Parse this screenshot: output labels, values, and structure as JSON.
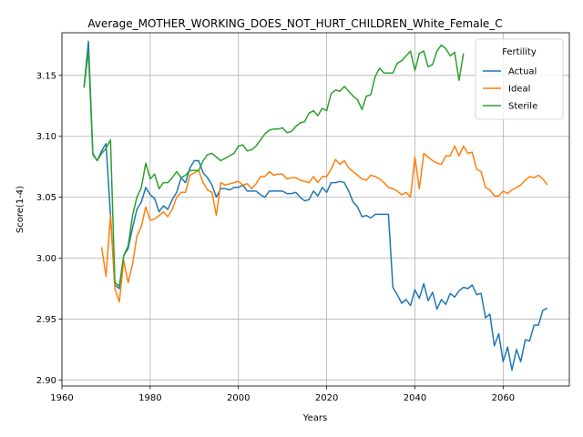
{
  "chart_data": {
    "type": "line",
    "title": "Average_MOTHER_WORKING_DOES_NOT_HURT_CHILDREN_White_Female_C",
    "xlabel": "Years",
    "ylabel": "Score(1-4)",
    "xlim": [
      1960,
      2075
    ],
    "ylim": [
      2.895,
      3.185
    ],
    "xticks": [
      1960,
      1980,
      2000,
      2020,
      2040,
      2060
    ],
    "yticks": [
      2.9,
      2.95,
      3.0,
      3.05,
      3.1,
      3.15
    ],
    "xtick_labels": [
      "1960",
      "1980",
      "2000",
      "2020",
      "2040",
      "2060"
    ],
    "ytick_labels": [
      "2.90",
      "2.95",
      "3.00",
      "3.05",
      "3.10",
      "3.15"
    ],
    "grid": true,
    "legend": {
      "title": "Fertility",
      "placement": "top-right"
    },
    "series": [
      {
        "name": "Actual",
        "color": "#1f77b4",
        "x": [
          1965,
          1966,
          1967,
          1968,
          1969,
          1970,
          1971,
          1972,
          1973,
          1974,
          1975,
          1976,
          1977,
          1978,
          1979,
          1980,
          1981,
          1982,
          1983,
          1984,
          1985,
          1986,
          1987,
          1988,
          1989,
          1990,
          1991,
          1992,
          1993,
          1994,
          1995,
          1996,
          1997,
          1998,
          1999,
          2000,
          2001,
          2002,
          2003,
          2004,
          2005,
          2006,
          2007,
          2008,
          2009,
          2010,
          2011,
          2012,
          2013,
          2014,
          2015,
          2016,
          2017,
          2018,
          2019,
          2020,
          2021,
          2022,
          2023,
          2024,
          2025,
          2026,
          2027,
          2028,
          2029,
          2030,
          2031,
          2032,
          2033,
          2034,
          2035,
          2036,
          2037,
          2038,
          2039,
          2040,
          2041,
          2042,
          2043,
          2044,
          2045,
          2046,
          2047,
          2048,
          2049,
          2050,
          2051,
          2052,
          2053,
          2054,
          2055,
          2056,
          2057,
          2058,
          2059,
          2060,
          2061,
          2062,
          2063,
          2064,
          2065,
          2066,
          2067,
          2068,
          2069,
          2070
        ],
        "values": [
          3.14,
          3.178,
          3.086,
          3.08,
          3.088,
          3.094,
          3.035,
          2.978,
          2.975,
          3.002,
          3.008,
          3.025,
          3.04,
          3.046,
          3.058,
          3.052,
          3.049,
          3.038,
          3.043,
          3.04,
          3.048,
          3.054,
          3.066,
          3.062,
          3.074,
          3.08,
          3.08,
          3.07,
          3.066,
          3.06,
          3.05,
          3.057,
          3.057,
          3.056,
          3.058,
          3.058,
          3.06,
          3.055,
          3.055,
          3.055,
          3.052,
          3.05,
          3.055,
          3.055,
          3.055,
          3.055,
          3.053,
          3.053,
          3.054,
          3.05,
          3.047,
          3.048,
          3.055,
          3.051,
          3.058,
          3.054,
          3.062,
          3.062,
          3.063,
          3.062,
          3.055,
          3.046,
          3.042,
          3.034,
          3.035,
          3.033,
          3.036,
          3.036,
          3.036,
          3.036,
          2.976,
          2.97,
          2.963,
          2.966,
          2.961,
          2.974,
          2.967,
          2.979,
          2.965,
          2.972,
          2.958,
          2.966,
          2.962,
          2.971,
          2.968,
          2.973,
          2.976,
          2.975,
          2.978,
          2.97,
          2.971,
          2.951,
          2.954,
          2.928,
          2.938,
          2.915,
          2.927,
          2.908,
          2.925,
          2.915,
          2.933,
          2.932,
          2.945,
          2.945,
          2.957,
          2.959
        ]
      },
      {
        "name": "Ideal",
        "color": "#ff7f0e",
        "x": [
          1969,
          1970,
          1971,
          1972,
          1973,
          1974,
          1975,
          1976,
          1977,
          1978,
          1979,
          1980,
          1981,
          1982,
          1983,
          1984,
          1985,
          1986,
          1987,
          1988,
          1989,
          1990,
          1991,
          1992,
          1993,
          1994,
          1995,
          1996,
          1997,
          1998,
          1999,
          2000,
          2001,
          2002,
          2003,
          2004,
          2005,
          2006,
          2007,
          2008,
          2009,
          2010,
          2011,
          2012,
          2013,
          2014,
          2015,
          2016,
          2017,
          2018,
          2019,
          2020,
          2021,
          2022,
          2023,
          2024,
          2025,
          2026,
          2027,
          2028,
          2029,
          2030,
          2031,
          2032,
          2033,
          2034,
          2035,
          2036,
          2037,
          2038,
          2039,
          2040,
          2041,
          2042,
          2043,
          2044,
          2045,
          2046,
          2047,
          2048,
          2049,
          2050,
          2051,
          2052,
          2053,
          2054,
          2055,
          2056,
          2057,
          2058,
          2059,
          2060,
          2061,
          2062,
          2063,
          2064,
          2065,
          2066,
          2067,
          2068,
          2069,
          2070
        ],
        "values": [
          3.009,
          2.985,
          3.035,
          2.975,
          2.964,
          2.998,
          2.98,
          2.995,
          3.018,
          3.026,
          3.042,
          3.031,
          3.032,
          3.035,
          3.038,
          3.034,
          3.04,
          3.05,
          3.054,
          3.054,
          3.068,
          3.07,
          3.072,
          3.062,
          3.056,
          3.054,
          3.035,
          3.062,
          3.06,
          3.061,
          3.062,
          3.063,
          3.06,
          3.061,
          3.057,
          3.061,
          3.067,
          3.067,
          3.071,
          3.068,
          3.069,
          3.069,
          3.065,
          3.066,
          3.066,
          3.064,
          3.063,
          3.062,
          3.067,
          3.062,
          3.067,
          3.067,
          3.073,
          3.081,
          3.077,
          3.08,
          3.074,
          3.071,
          3.068,
          3.065,
          3.064,
          3.068,
          3.067,
          3.065,
          3.062,
          3.058,
          3.057,
          3.055,
          3.052,
          3.054,
          3.05,
          3.083,
          3.057,
          3.086,
          3.083,
          3.08,
          3.078,
          3.077,
          3.084,
          3.084,
          3.092,
          3.084,
          3.092,
          3.086,
          3.087,
          3.073,
          3.071,
          3.058,
          3.056,
          3.051,
          3.051,
          3.055,
          3.053,
          3.056,
          3.058,
          3.06,
          3.064,
          3.067,
          3.066,
          3.068,
          3.065,
          3.06
        ]
      },
      {
        "name": "Sterile",
        "color": "#2ca02c",
        "x": [
          1965,
          1966,
          1967,
          1968,
          1969,
          1970,
          1971,
          1972,
          1973,
          1974,
          1975,
          1976,
          1977,
          1978,
          1979,
          1980,
          1981,
          1982,
          1983,
          1984,
          1985,
          1986,
          1987,
          1988,
          1989,
          1990,
          1991,
          1992,
          1993,
          1994,
          1995,
          1996,
          1997,
          1998,
          1999,
          2000,
          2001,
          2002,
          2003,
          2004,
          2005,
          2006,
          2007,
          2008,
          2009,
          2010,
          2011,
          2012,
          2013,
          2014,
          2015,
          2016,
          2017,
          2018,
          2019,
          2020,
          2021,
          2022,
          2023,
          2024,
          2025,
          2026,
          2027,
          2028,
          2029,
          2030,
          2031,
          2032,
          2033,
          2034,
          2035,
          2036,
          2037,
          2038,
          2039,
          2040,
          2041,
          2042,
          2043,
          2044,
          2045,
          2046,
          2047,
          2048,
          2049,
          2050,
          2051
        ],
        "values": [
          3.14,
          3.17,
          3.085,
          3.08,
          3.086,
          3.09,
          3.097,
          2.98,
          2.977,
          3.002,
          3.01,
          3.035,
          3.05,
          3.058,
          3.078,
          3.065,
          3.069,
          3.057,
          3.062,
          3.062,
          3.066,
          3.071,
          3.066,
          3.068,
          3.072,
          3.072,
          3.072,
          3.08,
          3.085,
          3.086,
          3.083,
          3.08,
          3.082,
          3.084,
          3.086,
          3.092,
          3.093,
          3.088,
          3.089,
          3.092,
          3.097,
          3.102,
          3.105,
          3.106,
          3.106,
          3.107,
          3.103,
          3.104,
          3.108,
          3.111,
          3.112,
          3.119,
          3.121,
          3.117,
          3.123,
          3.121,
          3.135,
          3.138,
          3.137,
          3.141,
          3.137,
          3.133,
          3.13,
          3.122,
          3.133,
          3.134,
          3.149,
          3.156,
          3.152,
          3.152,
          3.152,
          3.16,
          3.162,
          3.166,
          3.17,
          3.154,
          3.168,
          3.17,
          3.157,
          3.159,
          3.17,
          3.175,
          3.172,
          3.166,
          3.169,
          3.146,
          3.168
        ]
      }
    ]
  }
}
